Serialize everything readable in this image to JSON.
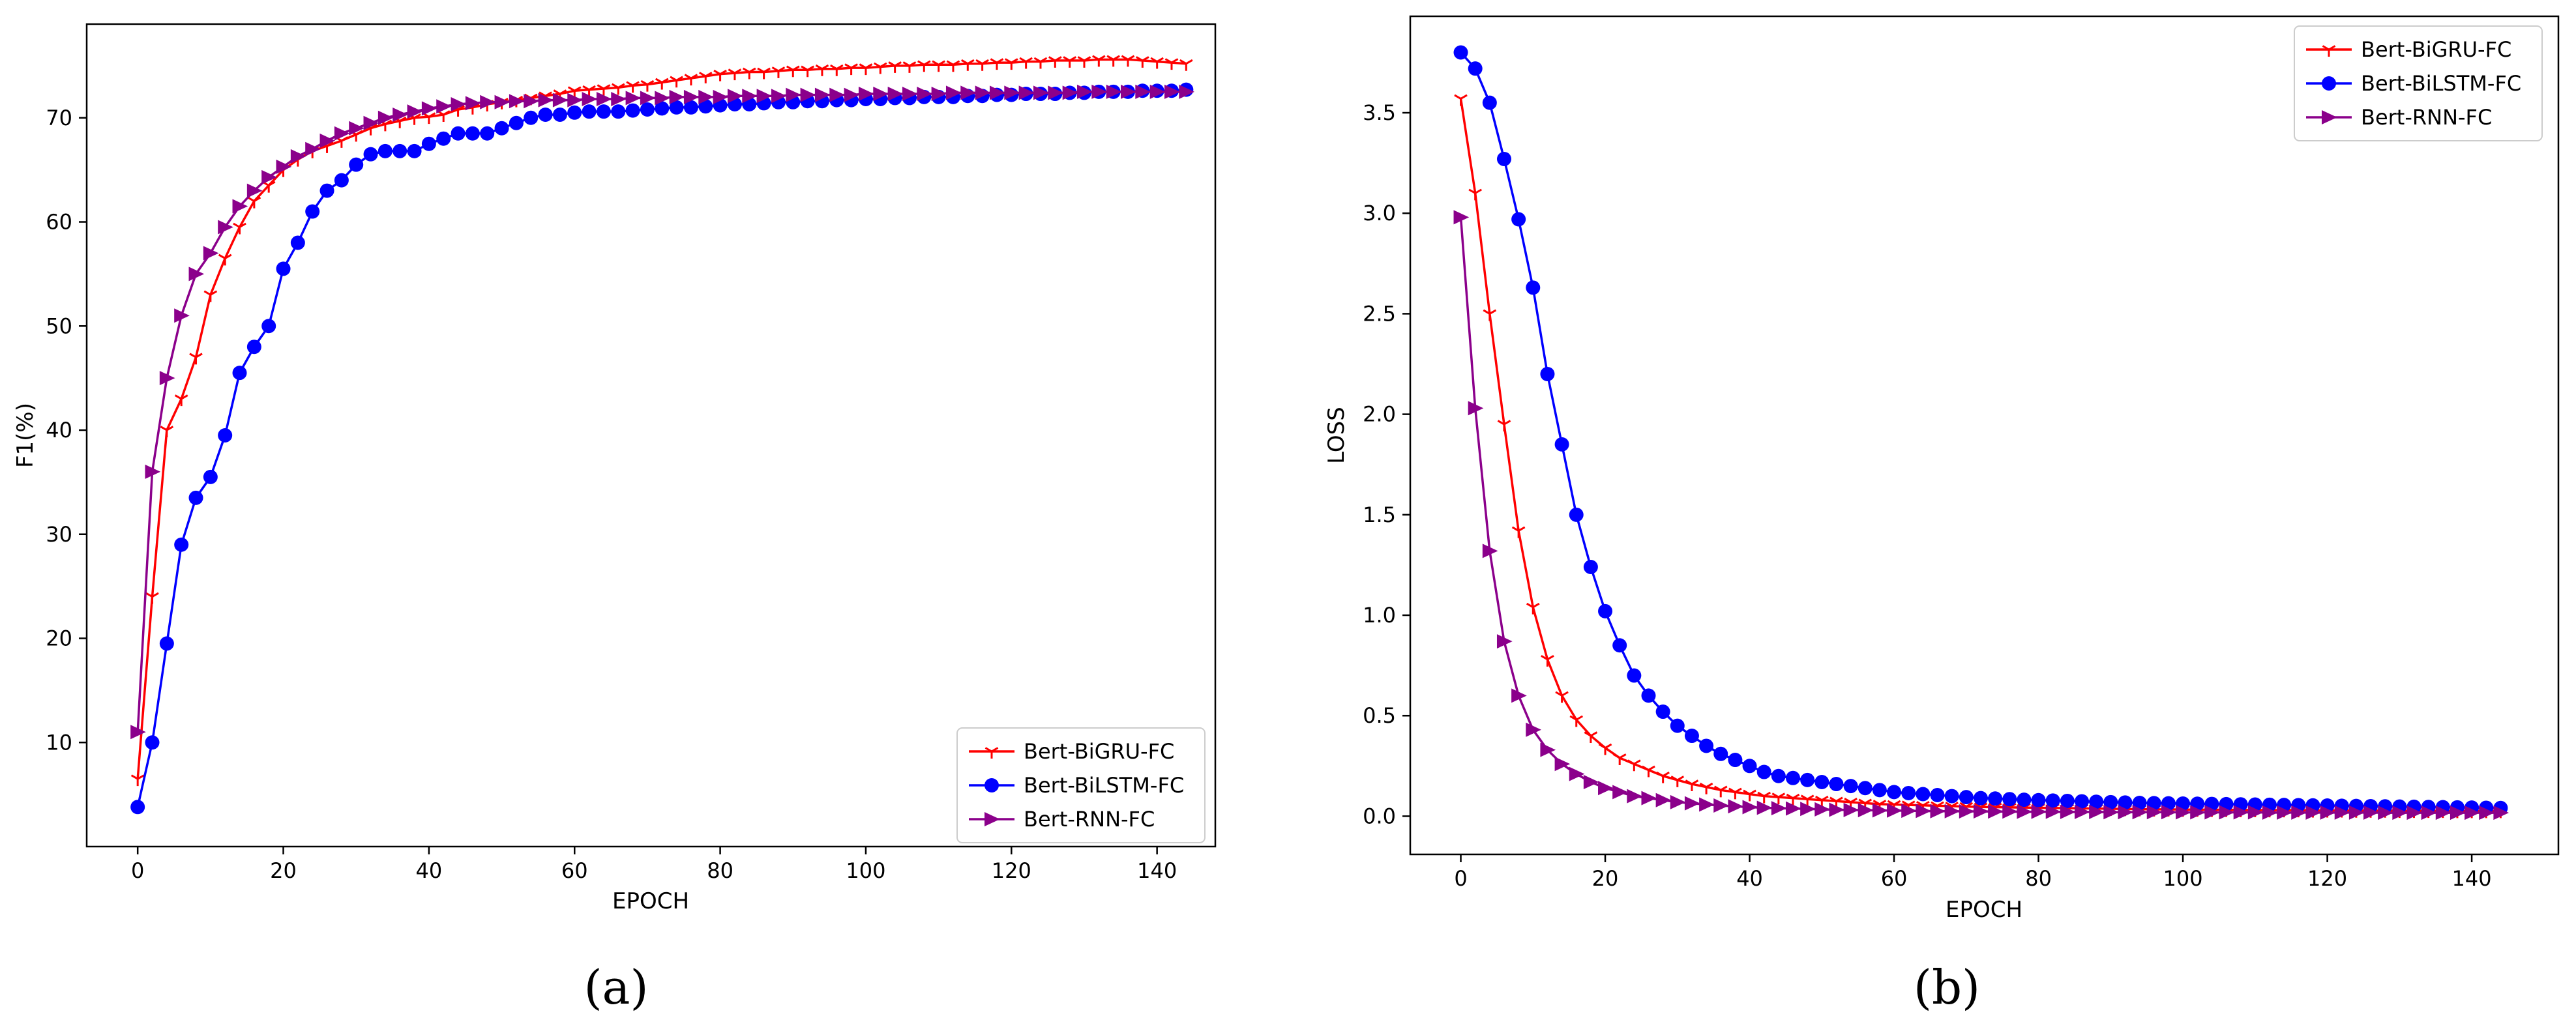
{
  "chart_data": [
    {
      "type": "line",
      "panel_label": "(a)",
      "xlabel": "EPOCH",
      "ylabel": "F1(%)",
      "xlim": [
        -7,
        148
      ],
      "ylim": [
        0,
        79
      ],
      "xticks": [
        0,
        20,
        40,
        60,
        80,
        100,
        120,
        140
      ],
      "yticks": [
        10,
        20,
        30,
        40,
        50,
        60,
        70
      ],
      "legend_position": "lower-right",
      "series": [
        {
          "name": "Bert-BiGRU-FC",
          "color": "#ff0000",
          "marker": "tri_down",
          "x": [
            0,
            2,
            4,
            6,
            8,
            10,
            12,
            14,
            16,
            18,
            20,
            22,
            24,
            26,
            28,
            30,
            32,
            34,
            36,
            38,
            40,
            42,
            44,
            46,
            48,
            50,
            52,
            54,
            56,
            58,
            60,
            62,
            64,
            66,
            68,
            70,
            72,
            74,
            76,
            78,
            80,
            82,
            84,
            86,
            88,
            90,
            92,
            94,
            96,
            98,
            100,
            102,
            104,
            106,
            108,
            110,
            112,
            114,
            116,
            118,
            120,
            122,
            124,
            126,
            128,
            130,
            132,
            134,
            136,
            138,
            140,
            142,
            144
          ],
          "y": [
            6.5,
            24,
            40,
            43,
            47,
            53,
            56.5,
            59.5,
            62,
            63.5,
            65,
            66,
            66.8,
            67.3,
            67.8,
            68.4,
            69,
            69.4,
            69.7,
            70,
            70.1,
            70.3,
            70.8,
            71,
            71.3,
            71.5,
            71.7,
            71.9,
            72.1,
            72.3,
            72.6,
            72.7,
            72.8,
            72.9,
            73.1,
            73.2,
            73.4,
            73.6,
            73.8,
            74,
            74.2,
            74.3,
            74.4,
            74.4,
            74.5,
            74.6,
            74.6,
            74.7,
            74.7,
            74.8,
            74.8,
            74.9,
            75,
            75,
            75.1,
            75.1,
            75.1,
            75.2,
            75.2,
            75.3,
            75.3,
            75.4,
            75.4,
            75.5,
            75.5,
            75.5,
            75.6,
            75.6,
            75.6,
            75.5,
            75.4,
            75.3,
            75.2
          ]
        },
        {
          "name": "Bert-BiLSTM-FC",
          "color": "#0000ff",
          "marker": "circle",
          "x": [
            0,
            2,
            4,
            6,
            8,
            10,
            12,
            14,
            16,
            18,
            20,
            22,
            24,
            26,
            28,
            30,
            32,
            34,
            36,
            38,
            40,
            42,
            44,
            46,
            48,
            50,
            52,
            54,
            56,
            58,
            60,
            62,
            64,
            66,
            68,
            70,
            72,
            74,
            76,
            78,
            80,
            82,
            84,
            86,
            88,
            90,
            92,
            94,
            96,
            98,
            100,
            102,
            104,
            106,
            108,
            110,
            112,
            114,
            116,
            118,
            120,
            122,
            124,
            126,
            128,
            130,
            132,
            134,
            136,
            138,
            140,
            142,
            144
          ],
          "y": [
            3.8,
            10,
            19.5,
            29,
            33.5,
            35.5,
            39.5,
            45.5,
            48,
            50,
            55.5,
            58,
            61,
            63,
            64,
            65.5,
            66.5,
            66.8,
            66.8,
            66.8,
            67.5,
            68,
            68.5,
            68.5,
            68.5,
            69,
            69.5,
            70,
            70.3,
            70.3,
            70.5,
            70.6,
            70.6,
            70.6,
            70.7,
            70.8,
            70.9,
            71,
            71,
            71.1,
            71.2,
            71.3,
            71.3,
            71.4,
            71.5,
            71.5,
            71.6,
            71.6,
            71.7,
            71.7,
            71.8,
            71.8,
            71.9,
            71.9,
            72,
            72,
            72,
            72.1,
            72.1,
            72.2,
            72.2,
            72.3,
            72.3,
            72.3,
            72.4,
            72.4,
            72.5,
            72.5,
            72.5,
            72.6,
            72.6,
            72.6,
            72.7
          ]
        },
        {
          "name": "Bert-RNN-FC",
          "color": "#8b008b",
          "marker": "triangle_right",
          "x": [
            0,
            2,
            4,
            6,
            8,
            10,
            12,
            14,
            16,
            18,
            20,
            22,
            24,
            26,
            28,
            30,
            32,
            34,
            36,
            38,
            40,
            42,
            44,
            46,
            48,
            50,
            52,
            54,
            56,
            58,
            60,
            62,
            64,
            66,
            68,
            70,
            72,
            74,
            76,
            78,
            80,
            82,
            84,
            86,
            88,
            90,
            92,
            94,
            96,
            98,
            100,
            102,
            104,
            106,
            108,
            110,
            112,
            114,
            116,
            118,
            120,
            122,
            124,
            126,
            128,
            130,
            132,
            134,
            136,
            138,
            140,
            142,
            144
          ],
          "y": [
            11,
            36,
            45,
            51,
            55,
            57,
            59.5,
            61.5,
            63,
            64.3,
            65.3,
            66.3,
            67,
            67.8,
            68.5,
            69,
            69.5,
            70,
            70.3,
            70.6,
            70.9,
            71.1,
            71.3,
            71.4,
            71.5,
            71.5,
            71.6,
            71.6,
            71.7,
            71.7,
            71.7,
            71.8,
            71.8,
            71.8,
            71.9,
            71.9,
            71.9,
            72,
            72,
            72,
            72,
            72.1,
            72.1,
            72.1,
            72.1,
            72.2,
            72.2,
            72.2,
            72.2,
            72.2,
            72.3,
            72.3,
            72.3,
            72.3,
            72.3,
            72.3,
            72.4,
            72.4,
            72.4,
            72.4,
            72.4,
            72.4,
            72.4,
            72.4,
            72.4,
            72.5,
            72.5,
            72.5,
            72.5,
            72.5,
            72.5,
            72.5,
            72.5
          ]
        }
      ]
    },
    {
      "type": "line",
      "panel_label": "(b)",
      "xlabel": "EPOCH",
      "ylabel": "LOSS",
      "xlim": [
        -7,
        152
      ],
      "ylim": [
        -0.19,
        3.98
      ],
      "xticks": [
        0,
        20,
        40,
        60,
        80,
        100,
        120,
        140
      ],
      "yticks": [
        0.0,
        0.5,
        1.0,
        1.5,
        2.0,
        2.5,
        3.0,
        3.5
      ],
      "ytick_labels": [
        "0.0",
        "0.5",
        "1.0",
        "1.5",
        "2.0",
        "2.5",
        "3.0",
        "3.5"
      ],
      "legend_position": "upper-right",
      "series": [
        {
          "name": "Bert-BiGRU-FC",
          "color": "#ff0000",
          "marker": "tri_down",
          "x": [
            0,
            2,
            4,
            6,
            8,
            10,
            12,
            14,
            16,
            18,
            20,
            22,
            24,
            26,
            28,
            30,
            32,
            34,
            36,
            38,
            40,
            42,
            44,
            46,
            48,
            50,
            52,
            54,
            56,
            58,
            60,
            62,
            64,
            66,
            68,
            70,
            72,
            74,
            76,
            78,
            80,
            82,
            84,
            86,
            88,
            90,
            92,
            94,
            96,
            98,
            100,
            102,
            104,
            106,
            108,
            110,
            112,
            114,
            116,
            118,
            120,
            122,
            124,
            126,
            128,
            130,
            132,
            134,
            136,
            138,
            140,
            142,
            144
          ],
          "y": [
            3.57,
            3.1,
            2.5,
            1.95,
            1.42,
            1.04,
            0.78,
            0.6,
            0.48,
            0.4,
            0.34,
            0.29,
            0.26,
            0.23,
            0.2,
            0.18,
            0.16,
            0.145,
            0.13,
            0.12,
            0.11,
            0.1,
            0.095,
            0.09,
            0.085,
            0.08,
            0.075,
            0.07,
            0.065,
            0.06,
            0.058,
            0.056,
            0.054,
            0.052,
            0.05,
            0.048,
            0.046,
            0.045,
            0.044,
            0.043,
            0.042,
            0.041,
            0.04,
            0.039,
            0.038,
            0.037,
            0.036,
            0.035,
            0.034,
            0.034,
            0.033,
            0.033,
            0.032,
            0.032,
            0.031,
            0.031,
            0.03,
            0.03,
            0.03,
            0.029,
            0.029,
            0.029,
            0.028,
            0.028,
            0.028,
            0.027,
            0.027,
            0.027,
            0.027,
            0.026,
            0.026,
            0.026,
            0.026
          ]
        },
        {
          "name": "Bert-BiLSTM-FC",
          "color": "#0000ff",
          "marker": "circle",
          "x": [
            0,
            2,
            4,
            6,
            8,
            10,
            12,
            14,
            16,
            18,
            20,
            22,
            24,
            26,
            28,
            30,
            32,
            34,
            36,
            38,
            40,
            42,
            44,
            46,
            48,
            50,
            52,
            54,
            56,
            58,
            60,
            62,
            64,
            66,
            68,
            70,
            72,
            74,
            76,
            78,
            80,
            82,
            84,
            86,
            88,
            90,
            92,
            94,
            96,
            98,
            100,
            102,
            104,
            106,
            108,
            110,
            112,
            114,
            116,
            118,
            120,
            122,
            124,
            126,
            128,
            130,
            132,
            134,
            136,
            138,
            140,
            142,
            144
          ],
          "y": [
            3.8,
            3.72,
            3.55,
            3.27,
            2.97,
            2.63,
            2.2,
            1.85,
            1.5,
            1.24,
            1.02,
            0.85,
            0.7,
            0.6,
            0.52,
            0.45,
            0.4,
            0.35,
            0.31,
            0.28,
            0.25,
            0.22,
            0.2,
            0.19,
            0.18,
            0.17,
            0.16,
            0.15,
            0.14,
            0.13,
            0.12,
            0.115,
            0.11,
            0.105,
            0.1,
            0.095,
            0.09,
            0.088,
            0.085,
            0.082,
            0.08,
            0.078,
            0.076,
            0.074,
            0.072,
            0.07,
            0.068,
            0.066,
            0.065,
            0.064,
            0.063,
            0.062,
            0.061,
            0.06,
            0.059,
            0.058,
            0.057,
            0.056,
            0.055,
            0.054,
            0.053,
            0.052,
            0.051,
            0.05,
            0.049,
            0.048,
            0.047,
            0.046,
            0.045,
            0.044,
            0.043,
            0.042,
            0.041
          ]
        },
        {
          "name": "Bert-RNN-FC",
          "color": "#8b008b",
          "marker": "triangle_right",
          "x": [
            0,
            2,
            4,
            6,
            8,
            10,
            12,
            14,
            16,
            18,
            20,
            22,
            24,
            26,
            28,
            30,
            32,
            34,
            36,
            38,
            40,
            42,
            44,
            46,
            48,
            50,
            52,
            54,
            56,
            58,
            60,
            62,
            64,
            66,
            68,
            70,
            72,
            74,
            76,
            78,
            80,
            82,
            84,
            86,
            88,
            90,
            92,
            94,
            96,
            98,
            100,
            102,
            104,
            106,
            108,
            110,
            112,
            114,
            116,
            118,
            120,
            122,
            124,
            126,
            128,
            130,
            132,
            134,
            136,
            138,
            140,
            142,
            144
          ],
          "y": [
            2.98,
            2.03,
            1.32,
            0.87,
            0.6,
            0.43,
            0.33,
            0.26,
            0.21,
            0.17,
            0.14,
            0.12,
            0.1,
            0.09,
            0.08,
            0.07,
            0.064,
            0.058,
            0.053,
            0.049,
            0.045,
            0.042,
            0.04,
            0.038,
            0.036,
            0.034,
            0.032,
            0.031,
            0.03,
            0.029,
            0.028,
            0.027,
            0.026,
            0.025,
            0.025,
            0.024,
            0.024,
            0.023,
            0.023,
            0.022,
            0.022,
            0.022,
            0.021,
            0.021,
            0.021,
            0.02,
            0.02,
            0.02,
            0.02,
            0.02,
            0.019,
            0.019,
            0.019,
            0.019,
            0.019,
            0.019,
            0.018,
            0.018,
            0.018,
            0.018,
            0.018,
            0.018,
            0.018,
            0.018,
            0.017,
            0.017,
            0.017,
            0.017,
            0.017,
            0.017,
            0.017,
            0.017,
            0.017
          ]
        }
      ]
    }
  ]
}
